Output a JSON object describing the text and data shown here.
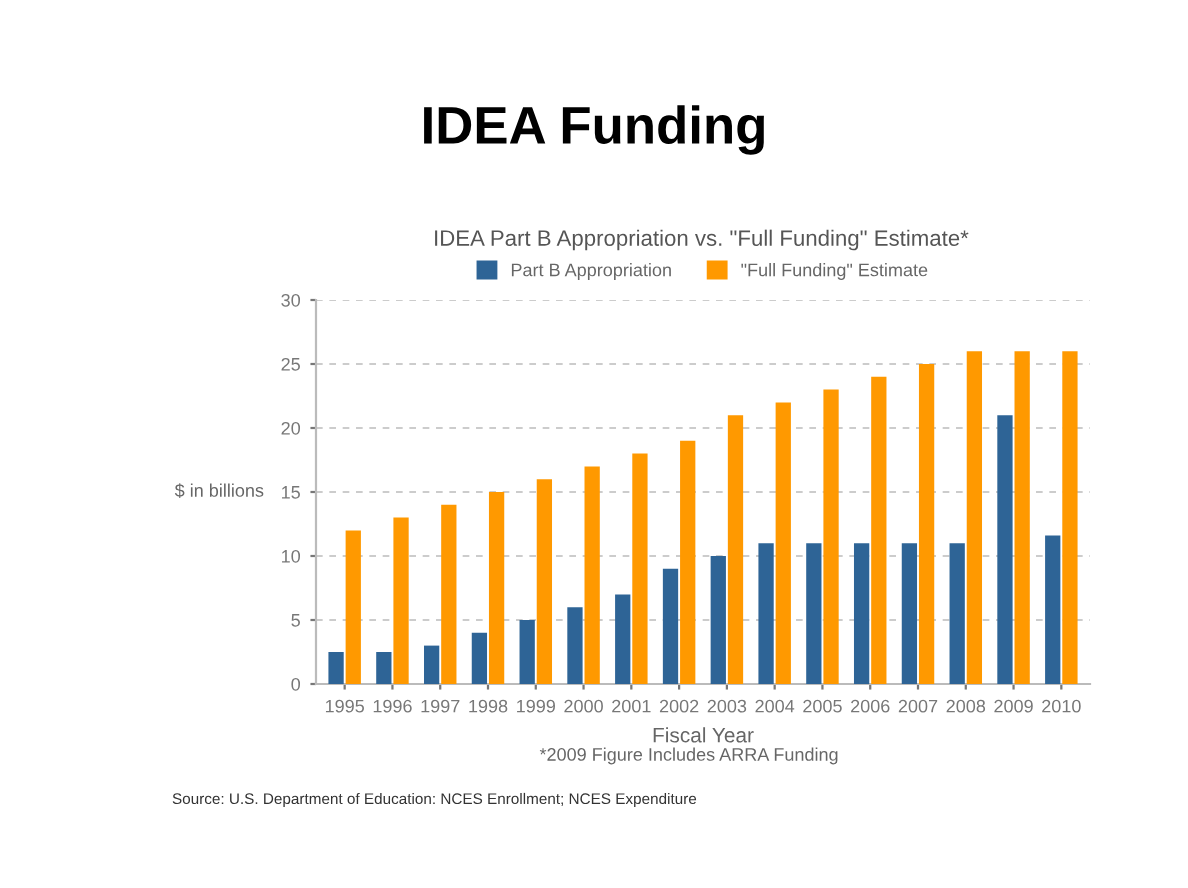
{
  "chart_data": {
    "type": "bar",
    "title": "IDEA Funding",
    "subtitle": "IDEA Part B Appropriation vs. \"Full Funding\" Estimate*",
    "xlabel": "Fiscal Year",
    "ylabel": "$ in billions",
    "categories": [
      "1995",
      "1996",
      "1997",
      "1998",
      "1999",
      "2000",
      "2001",
      "2002",
      "2003",
      "2004",
      "2005",
      "2006",
      "2007",
      "2008",
      "2009",
      "2010"
    ],
    "series": [
      {
        "name": "Part B Appropriation",
        "color": "#2e6496",
        "values": [
          2.5,
          2.5,
          3,
          4,
          5,
          6,
          7,
          9,
          10,
          11,
          11,
          11,
          11,
          11,
          21,
          11.6
        ]
      },
      {
        "name": "\"Full Funding\" Estimate",
        "color": "#ff9900",
        "values": [
          12,
          13,
          14,
          15,
          16,
          17,
          18,
          19,
          21,
          22,
          23,
          24,
          25,
          26,
          26,
          26
        ]
      }
    ],
    "ylim": [
      0,
      30
    ],
    "yticks": [
      0,
      5,
      10,
      15,
      20,
      25,
      30
    ],
    "grid": "y",
    "legend": "top",
    "annotations": [
      "*2009 Figure Includes ARRA Funding",
      "Source: U.S. Department of Education: NCES Enrollment; NCES Expenditure"
    ]
  }
}
